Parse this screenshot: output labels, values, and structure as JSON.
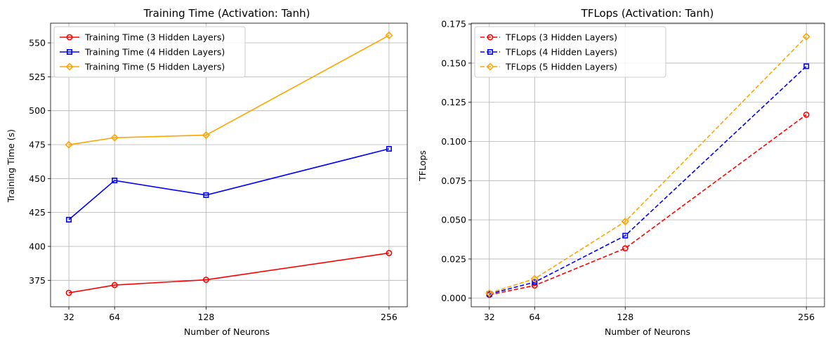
{
  "chart_data": [
    {
      "type": "line",
      "title": "Training Time (Activation: Tanh)",
      "xlabel": "Number of Neurons",
      "ylabel": "Training Time (s)",
      "x": [
        32,
        64,
        128,
        256
      ],
      "xlim": [
        19.2,
        268.8
      ],
      "ylim": [
        355.5,
        564.5
      ],
      "xticks": [
        "32",
        "64",
        "128",
        "256"
      ],
      "yticks": [
        375,
        400,
        425,
        450,
        475,
        500,
        525,
        550
      ],
      "ytick_labels": [
        "375",
        "400",
        "425",
        "450",
        "475",
        "500",
        "525",
        "550"
      ],
      "grid": true,
      "legend_position": "top-left",
      "series": [
        {
          "name": "Training Time (3 Hidden Layers)",
          "color": "#ff0000",
          "marker": "circle",
          "linestyle": "solid",
          "values": [
            365.8,
            371.5,
            375.4,
            395.1
          ]
        },
        {
          "name": "Training Time (4 Hidden Layers)",
          "color": "#0000ff",
          "marker": "square",
          "linestyle": "solid",
          "values": [
            419.7,
            448.6,
            437.8,
            471.9
          ]
        },
        {
          "name": "Training Time (5 Hidden Layers)",
          "color": "#ffa500",
          "marker": "diamond",
          "linestyle": "solid",
          "values": [
            474.9,
            480.1,
            482.0,
            555.5
          ]
        }
      ]
    },
    {
      "type": "line",
      "title": "TFLops (Activation: Tanh)",
      "xlabel": "Number of Neurons",
      "ylabel": "TFLops",
      "x": [
        32,
        64,
        128,
        256
      ],
      "xlim": [
        19.2,
        268.8
      ],
      "ylim": [
        -0.0055,
        0.1755
      ],
      "xticks": [
        "32",
        "64",
        "128",
        "256"
      ],
      "yticks": [
        0,
        0.025,
        0.05,
        0.075,
        0.1,
        0.125,
        0.15,
        0.175
      ],
      "ytick_labels": [
        "0.000",
        "0.025",
        "0.050",
        "0.075",
        "0.100",
        "0.125",
        "0.150",
        "0.175"
      ],
      "grid": true,
      "legend_position": "top-left",
      "series": [
        {
          "name": "TFLops (3 Hidden Layers)",
          "color": "#ff0000",
          "marker": "circle",
          "linestyle": "dashed",
          "values": [
            0.0021,
            0.0081,
            0.0318,
            0.1171
          ]
        },
        {
          "name": "TFLops (4 Hidden Layers)",
          "color": "#0000ff",
          "marker": "square",
          "linestyle": "dashed",
          "values": [
            0.0027,
            0.0102,
            0.0399,
            0.148
          ]
        },
        {
          "name": "TFLops (5 Hidden Layers)",
          "color": "#ffa500",
          "marker": "diamond",
          "linestyle": "dashed",
          "values": [
            0.0032,
            0.0124,
            0.0489,
            0.1669
          ]
        }
      ]
    }
  ]
}
